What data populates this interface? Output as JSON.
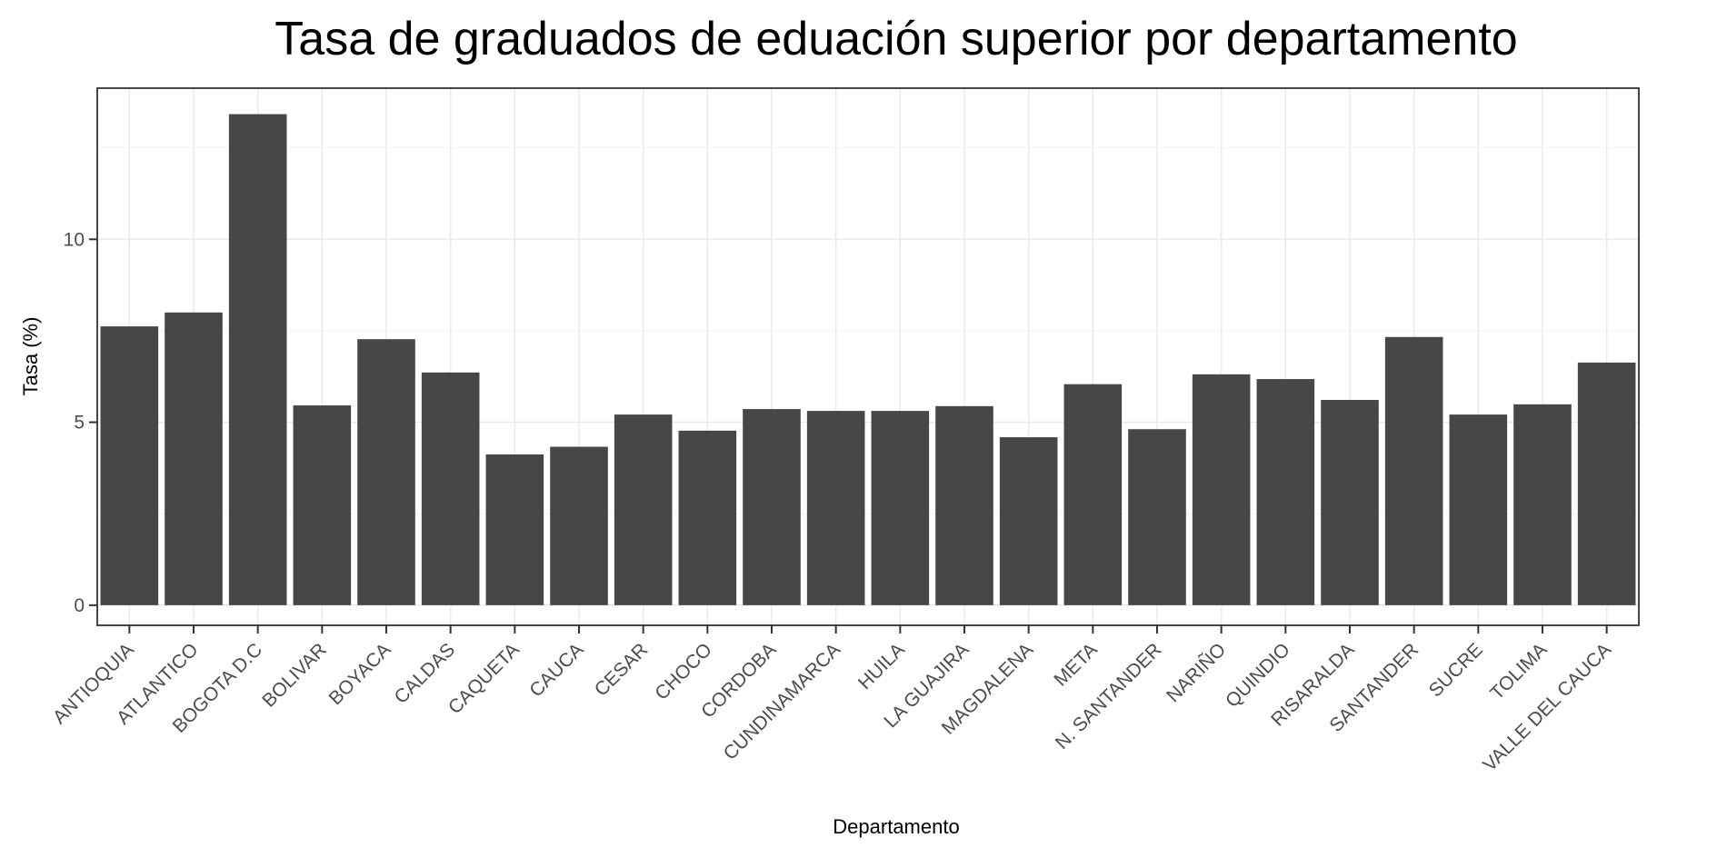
{
  "chart_data": {
    "type": "bar",
    "title": "Tasa de graduados de eduación superior por departamento",
    "xlabel": "Departamento",
    "ylabel": "Tasa (%)",
    "categories": [
      "ANTIOQUIA",
      "ATLANTICO",
      "BOGOTA D.C",
      "BOLIVAR",
      "BOYACA",
      "CALDAS",
      "CAQUETA",
      "CAUCA",
      "CESAR",
      "CHOCO",
      "CORDOBA",
      "CUNDINAMARCA",
      "HUILA",
      "LA GUAJIRA",
      "MAGDALENA",
      "META",
      "N. SANTANDER",
      "NARIÑO",
      "QUINDIO",
      "RISARALDA",
      "SANTANDER",
      "SUCRE",
      "TOLIMA",
      "VALLE DEL CAUCA"
    ],
    "values": [
      7.62,
      8.0,
      13.42,
      5.46,
      7.27,
      6.36,
      4.12,
      4.33,
      5.21,
      4.77,
      5.36,
      5.31,
      5.31,
      5.44,
      4.59,
      6.04,
      4.81,
      6.31,
      6.18,
      5.61,
      7.33,
      5.21,
      5.49,
      6.63
    ],
    "yticks": [
      "0",
      "5",
      "10"
    ],
    "ylim": [
      -0.55,
      14.13
    ],
    "bar_color": "#474747",
    "grid": true,
    "legend": "none"
  }
}
